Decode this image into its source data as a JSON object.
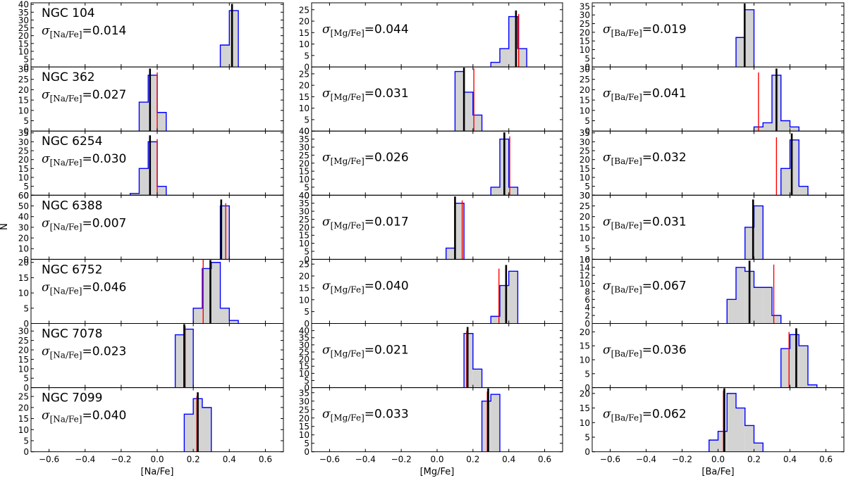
{
  "figure": {
    "ylabel": "N"
  },
  "columns": [
    {
      "element": "Na",
      "xlabel": "[Na/Fe]",
      "sigma_label": "[Na/Fe]"
    },
    {
      "element": "Mg",
      "xlabel": "[Mg/Fe]",
      "sigma_label": "[Mg/Fe]"
    },
    {
      "element": "Ba",
      "xlabel": "[Ba/Fe]",
      "sigma_label": "[Ba/Fe]"
    }
  ],
  "chart_data": [
    {
      "type": "bar",
      "cluster": "NGC 104",
      "element": "Na",
      "sigma": "0.014",
      "xlim": [
        -0.7,
        0.7
      ],
      "ylim": [
        0,
        41
      ],
      "yticks": [
        0,
        5,
        10,
        15,
        20,
        25,
        30,
        35,
        40
      ],
      "bin_edges": [
        0.35,
        0.4,
        0.45
      ],
      "counts": [
        14,
        36
      ],
      "mean_line": 0.415,
      "ref_line": null
    },
    {
      "type": "bar",
      "cluster": "NGC 104",
      "element": "Mg",
      "sigma": "0.044",
      "xlim": [
        -0.7,
        0.7
      ],
      "ylim": [
        0,
        28
      ],
      "yticks": [
        0,
        5,
        10,
        15,
        20,
        25
      ],
      "bin_edges": [
        0.3,
        0.35,
        0.4,
        0.45,
        0.5
      ],
      "counts": [
        2,
        8,
        22,
        8
      ],
      "mean_line": 0.44,
      "ref_line": 0.455
    },
    {
      "type": "bar",
      "cluster": "NGC 104",
      "element": "Ba",
      "sigma": "0.019",
      "xlim": [
        -0.7,
        0.7
      ],
      "ylim": [
        0,
        37
      ],
      "yticks": [
        0,
        5,
        10,
        15,
        20,
        25,
        30,
        35
      ],
      "bin_edges": [
        0.1,
        0.15,
        0.2
      ],
      "counts": [
        17,
        33
      ],
      "mean_line": 0.148,
      "ref_line": null
    },
    {
      "type": "bar",
      "cluster": "NGC 362",
      "element": "Na",
      "sigma": "0.027",
      "xlim": [
        -0.7,
        0.7
      ],
      "ylim": [
        0,
        31
      ],
      "yticks": [
        0,
        5,
        10,
        15,
        20,
        25,
        30
      ],
      "bin_edges": [
        -0.1,
        -0.05,
        0.0,
        0.05
      ],
      "counts": [
        14,
        27,
        9
      ],
      "mean_line": -0.04,
      "ref_line": 0.0
    },
    {
      "type": "bar",
      "cluster": "NGC 362",
      "element": "Mg",
      "sigma": "0.031",
      "xlim": [
        -0.7,
        0.7
      ],
      "ylim": [
        0,
        28
      ],
      "yticks": [
        0,
        5,
        10,
        15,
        20,
        25
      ],
      "bin_edges": [
        0.1,
        0.15,
        0.2,
        0.25
      ],
      "counts": [
        26,
        17,
        7
      ],
      "mean_line": 0.15,
      "ref_line": 0.205
    },
    {
      "type": "bar",
      "cluster": "NGC 362",
      "element": "Ba",
      "sigma": "0.041",
      "xlim": [
        -0.7,
        0.7
      ],
      "ylim": [
        0,
        31
      ],
      "yticks": [
        0,
        5,
        10,
        15,
        20,
        25,
        30
      ],
      "bin_edges": [
        0.2,
        0.25,
        0.3,
        0.35,
        0.4,
        0.45
      ],
      "counts": [
        2,
        4,
        27,
        5,
        2
      ],
      "mean_line": 0.325,
      "ref_line": 0.225
    },
    {
      "type": "bar",
      "cluster": "NGC 6254",
      "element": "Na",
      "sigma": "0.030",
      "xlim": [
        -0.7,
        0.7
      ],
      "ylim": [
        0,
        36
      ],
      "yticks": [
        0,
        5,
        10,
        15,
        20,
        25,
        30,
        35
      ],
      "bin_edges": [
        -0.15,
        -0.1,
        -0.05,
        0.0,
        0.05
      ],
      "counts": [
        1,
        15,
        30,
        5
      ],
      "mean_line": -0.04,
      "ref_line": 0.0
    },
    {
      "type": "bar",
      "cluster": "NGC 6254",
      "element": "Mg",
      "sigma": "0.026",
      "xlim": [
        -0.7,
        0.7
      ],
      "ylim": [
        0,
        40
      ],
      "yticks": [
        0,
        5,
        10,
        15,
        20,
        25,
        30,
        35,
        40
      ],
      "bin_edges": [
        0.3,
        0.35,
        0.4,
        0.45
      ],
      "counts": [
        5,
        35,
        5
      ],
      "mean_line": 0.375,
      "ref_line": 0.405
    },
    {
      "type": "bar",
      "cluster": "NGC 6254",
      "element": "Ba",
      "sigma": "0.032",
      "xlim": [
        -0.7,
        0.7
      ],
      "ylim": [
        0,
        36
      ],
      "yticks": [
        0,
        5,
        10,
        15,
        20,
        25,
        30,
        35
      ],
      "bin_edges": [
        0.35,
        0.4,
        0.45,
        0.5
      ],
      "counts": [
        15,
        31,
        5
      ],
      "mean_line": 0.41,
      "ref_line": 0.325
    },
    {
      "type": "bar",
      "cluster": "NGC 6388",
      "element": "Na",
      "sigma": "0.007",
      "xlim": [
        -0.7,
        0.7
      ],
      "ylim": [
        0,
        60
      ],
      "yticks": [
        0,
        10,
        20,
        30,
        40,
        50,
        60
      ],
      "bin_edges": [
        0.35,
        0.4
      ],
      "counts": [
        50
      ],
      "mean_line": 0.355,
      "ref_line": 0.38
    },
    {
      "type": "bar",
      "cluster": "NGC 6388",
      "element": "Mg",
      "sigma": "0.017",
      "xlim": [
        -0.7,
        0.7
      ],
      "ylim": [
        0,
        40
      ],
      "yticks": [
        0,
        5,
        10,
        15,
        20,
        25,
        30,
        35,
        40
      ],
      "bin_edges": [
        0.05,
        0.1,
        0.15
      ],
      "counts": [
        7,
        35
      ],
      "mean_line": 0.1,
      "ref_line": 0.14
    },
    {
      "type": "bar",
      "cluster": "NGC 6388",
      "element": "Ba",
      "sigma": "0.031",
      "xlim": [
        -0.7,
        0.7
      ],
      "ylim": [
        0,
        30
      ],
      "yticks": [
        0,
        5,
        10,
        15,
        20,
        25,
        30
      ],
      "bin_edges": [
        0.15,
        0.2,
        0.25
      ],
      "counts": [
        15,
        25
      ],
      "mean_line": 0.195,
      "ref_line": 0.195
    },
    {
      "type": "bar",
      "cluster": "NGC 6752",
      "element": "Na",
      "sigma": "0.046",
      "xlim": [
        -0.7,
        0.7
      ],
      "ylim": [
        0,
        21
      ],
      "yticks": [
        0,
        5,
        10,
        15,
        20
      ],
      "bin_edges": [
        0.2,
        0.25,
        0.3,
        0.35,
        0.4,
        0.45
      ],
      "counts": [
        5,
        18,
        20,
        5,
        1
      ],
      "mean_line": 0.295,
      "ref_line": 0.255
    },
    {
      "type": "bar",
      "cluster": "NGC 6752",
      "element": "Mg",
      "sigma": "0.040",
      "xlim": [
        -0.7,
        0.7
      ],
      "ylim": [
        0,
        27
      ],
      "yticks": [
        0,
        5,
        10,
        15,
        20,
        25
      ],
      "bin_edges": [
        0.3,
        0.35,
        0.4,
        0.45
      ],
      "counts": [
        3,
        16,
        22
      ],
      "mean_line": 0.385,
      "ref_line": 0.345
    },
    {
      "type": "bar",
      "cluster": "NGC 6752",
      "element": "Ba",
      "sigma": "0.067",
      "xlim": [
        -0.7,
        0.7
      ],
      "ylim": [
        0,
        16
      ],
      "yticks": [
        0,
        2,
        4,
        6,
        8,
        10,
        12,
        14,
        16
      ],
      "bin_edges": [
        0.05,
        0.1,
        0.15,
        0.2,
        0.25,
        0.3,
        0.35
      ],
      "counts": [
        6,
        14,
        13,
        9,
        9,
        2
      ],
      "mean_line": 0.175,
      "ref_line": 0.31
    },
    {
      "type": "bar",
      "cluster": "NGC 7078",
      "element": "Na",
      "sigma": "0.023",
      "xlim": [
        -0.7,
        0.7
      ],
      "ylim": [
        0,
        34
      ],
      "yticks": [
        0,
        5,
        10,
        15,
        20,
        25,
        30
      ],
      "bin_edges": [
        0.1,
        0.15,
        0.2
      ],
      "counts": [
        28,
        31
      ],
      "mean_line": 0.15,
      "ref_line": 0.155
    },
    {
      "type": "bar",
      "cluster": "NGC 7078",
      "element": "Mg",
      "sigma": "0.021",
      "xlim": [
        -0.7,
        0.7
      ],
      "ylim": [
        0,
        45
      ],
      "yticks": [
        0,
        5,
        10,
        15,
        20,
        25,
        30,
        35,
        40
      ],
      "bin_edges": [
        0.15,
        0.2,
        0.25
      ],
      "counts": [
        38,
        13
      ],
      "mean_line": 0.17,
      "ref_line": 0.165
    },
    {
      "type": "bar",
      "cluster": "NGC 7078",
      "element": "Ba",
      "sigma": "0.036",
      "xlim": [
        -0.7,
        0.7
      ],
      "ylim": [
        0,
        23
      ],
      "yticks": [
        0,
        5,
        10,
        15,
        20
      ],
      "bin_edges": [
        0.35,
        0.4,
        0.45,
        0.5,
        0.55
      ],
      "counts": [
        14,
        19,
        15,
        1
      ],
      "mean_line": 0.435,
      "ref_line": 0.395
    },
    {
      "type": "bar",
      "cluster": "NGC 7099",
      "element": "Na",
      "sigma": "0.040",
      "xlim": [
        -0.7,
        0.7
      ],
      "ylim": [
        0,
        29
      ],
      "yticks": [
        0,
        5,
        10,
        15,
        20,
        25
      ],
      "bin_edges": [
        0.15,
        0.2,
        0.25,
        0.3
      ],
      "counts": [
        17,
        24,
        20
      ],
      "mean_line": 0.225,
      "ref_line": 0.22
    },
    {
      "type": "bar",
      "cluster": "NGC 7099",
      "element": "Mg",
      "sigma": "0.033",
      "xlim": [
        -0.7,
        0.7
      ],
      "ylim": [
        0,
        38
      ],
      "yticks": [
        0,
        5,
        10,
        15,
        20,
        25,
        30,
        35
      ],
      "bin_edges": [
        0.25,
        0.3,
        0.35
      ],
      "counts": [
        30,
        34
      ],
      "mean_line": 0.285,
      "ref_line": 0.28
    },
    {
      "type": "bar",
      "cluster": "NGC 7099",
      "element": "Ba",
      "sigma": "0.062",
      "xlim": [
        -0.7,
        0.7
      ],
      "ylim": [
        0,
        22
      ],
      "yticks": [
        0,
        5,
        10,
        15,
        20
      ],
      "bin_edges": [
        -0.05,
        0.0,
        0.05,
        0.1,
        0.15,
        0.2,
        0.25
      ],
      "counts": [
        4,
        7,
        20,
        15,
        9,
        3
      ],
      "mean_line": 0.035,
      "ref_line": 0.03
    }
  ],
  "xticks": [
    -0.6,
    -0.4,
    -0.2,
    0.0,
    0.2,
    0.4,
    0.6
  ],
  "xtick_labels": [
    "−0.6",
    "−0.4",
    "−0.2",
    "0.0",
    "0.2",
    "0.4",
    "0.6"
  ],
  "colors": {
    "bar_fill": "#d3d3d3",
    "bar_edge": "#0000ff",
    "mean_line": "#000000",
    "ref_line": "#ff0000",
    "axes": "#000000"
  }
}
